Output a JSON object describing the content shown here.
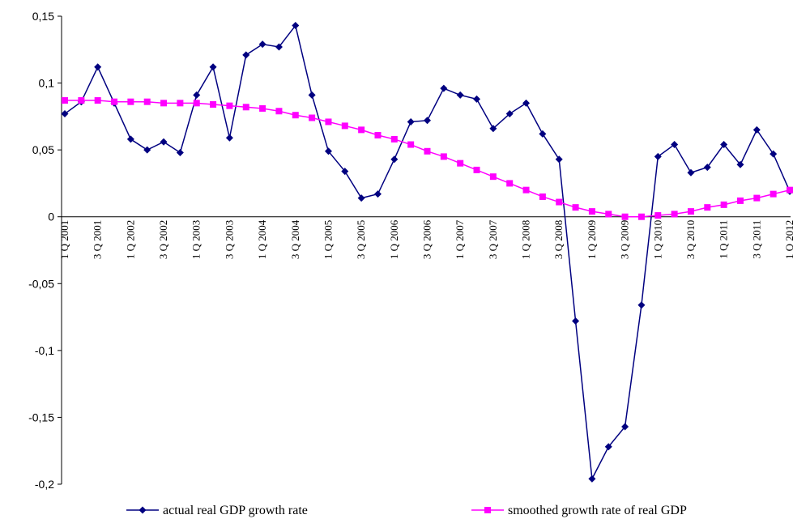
{
  "chart_data": {
    "type": "line",
    "categories": [
      "1 Q 2001",
      null,
      "3 Q 2001",
      null,
      "1 Q 2002",
      null,
      "3 Q 2002",
      null,
      "1 Q 2003",
      null,
      "3 Q 2003",
      null,
      "1 Q 2004",
      null,
      "3 Q 2004",
      null,
      "1 Q 2005",
      null,
      "3 Q 2005",
      null,
      "1 Q 2006",
      null,
      "3 Q 2006",
      null,
      "1 Q 2007",
      null,
      "3 Q 2007",
      null,
      "1 Q 2008",
      null,
      "3 Q 2008",
      null,
      "1 Q 2009",
      null,
      "3 Q 2009",
      null,
      "1 Q 2010",
      null,
      "3 Q 2010",
      null,
      "1 Q 2011",
      null,
      "3 Q 2011",
      null,
      "1 Q 2012"
    ],
    "series": [
      {
        "name": "actual real GDP growth rate",
        "color": "#000080",
        "marker": "diamond",
        "values": [
          0.077,
          0.086,
          0.112,
          0.085,
          0.058,
          0.05,
          0.056,
          0.048,
          0.091,
          0.112,
          0.059,
          0.121,
          0.129,
          0.127,
          0.143,
          0.091,
          0.049,
          0.034,
          0.014,
          0.017,
          0.043,
          0.071,
          0.072,
          0.096,
          0.091,
          0.088,
          0.066,
          0.077,
          0.085,
          0.062,
          0.043,
          -0.078,
          -0.196,
          -0.172,
          -0.157,
          -0.066,
          0.045,
          0.054,
          0.033,
          0.037,
          0.054,
          0.039,
          0.065,
          0.047,
          0.019
        ]
      },
      {
        "name": "smoothed growth rate of real GDP",
        "color": "#ff00ff",
        "marker": "square",
        "values": [
          0.087,
          0.087,
          0.087,
          0.086,
          0.086,
          0.086,
          0.085,
          0.085,
          0.085,
          0.084,
          0.083,
          0.082,
          0.081,
          0.079,
          0.076,
          0.074,
          0.071,
          0.068,
          0.065,
          0.061,
          0.058,
          0.054,
          0.049,
          0.045,
          0.04,
          0.035,
          0.03,
          0.025,
          0.02,
          0.015,
          0.011,
          0.007,
          0.004,
          0.002,
          0.0,
          0.0,
          0.001,
          0.002,
          0.004,
          0.007,
          0.009,
          0.012,
          0.014,
          0.017,
          0.02
        ]
      }
    ],
    "ylim": [
      -0.2,
      0.15
    ],
    "yticks": [
      {
        "value": -0.2,
        "label": "-0,2"
      },
      {
        "value": -0.15,
        "label": "-0,15"
      },
      {
        "value": -0.1,
        "label": "-0,1"
      },
      {
        "value": -0.05,
        "label": "-0,05"
      },
      0,
      {
        "value": 0.05,
        "label": "0,05"
      },
      {
        "value": 0.1,
        "label": "0,1"
      },
      {
        "value": 0.15,
        "label": "0,15"
      }
    ],
    "grid": false,
    "legend": "bottom"
  }
}
